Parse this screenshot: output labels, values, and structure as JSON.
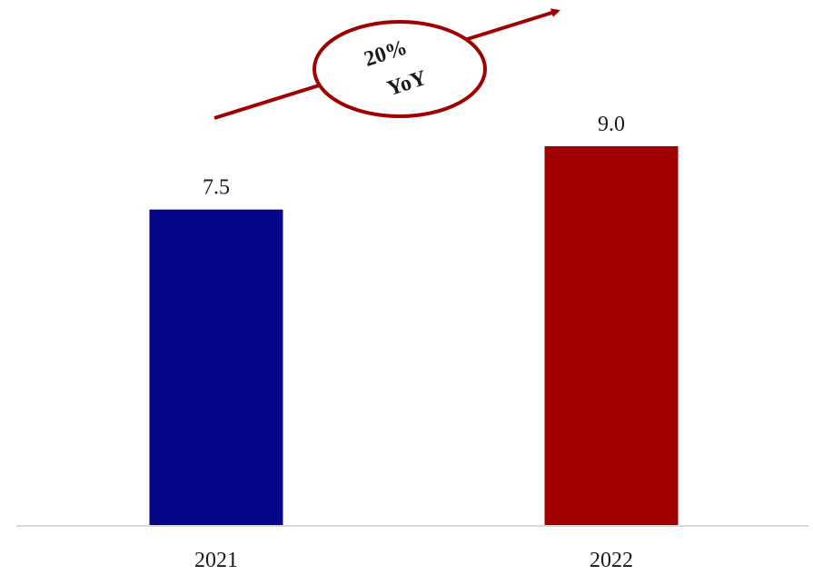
{
  "chart_data": {
    "type": "bar",
    "categories": [
      "2021",
      "2022"
    ],
    "values": [
      7.5,
      9.0
    ],
    "value_labels": [
      "7.5",
      "9.0"
    ],
    "colors": [
      "#06068A",
      "#A00000"
    ],
    "title": "",
    "xlabel": "",
    "ylabel": "",
    "ylim": [
      0,
      9.0
    ],
    "grid": false,
    "axis_line_color": "#d9d9d9"
  },
  "annotation": {
    "line1": "20%",
    "line2": "YoY",
    "color": "#A00000"
  }
}
